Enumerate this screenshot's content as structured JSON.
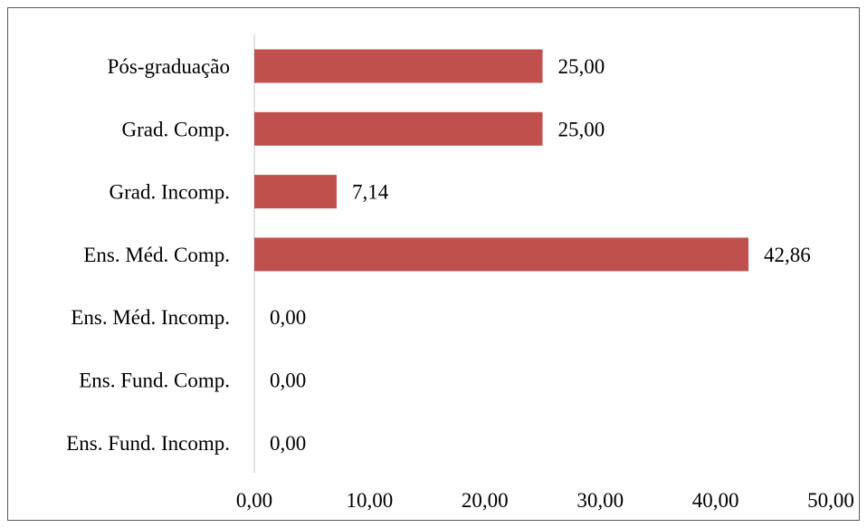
{
  "chart_data": {
    "type": "bar",
    "orientation": "horizontal",
    "title": "",
    "xlabel": "",
    "ylabel": "",
    "categories": [
      "Pós-graduação",
      "Grad. Comp.",
      "Grad. Incomp.",
      "Ens. Méd. Comp.",
      "Ens. Méd. Incomp.",
      "Ens. Fund. Comp.",
      "Ens. Fund. Incomp."
    ],
    "values": [
      25.0,
      25.0,
      7.14,
      42.86,
      0.0,
      0.0,
      0.0
    ],
    "data_labels": [
      "25,00",
      "25,00",
      "7,14",
      "42,86",
      "0,00",
      "0,00",
      "0,00"
    ],
    "xlim": [
      0,
      50
    ],
    "x_ticks": [
      0,
      10,
      20,
      30,
      40,
      50
    ],
    "x_tick_labels": [
      "0,00",
      "10,00",
      "20,00",
      "30,00",
      "40,00",
      "50,00"
    ],
    "grid": false,
    "legend": "none",
    "colors": {
      "bar": "#c0504d",
      "axis": "#d9d9d9",
      "border": "#595959"
    }
  }
}
